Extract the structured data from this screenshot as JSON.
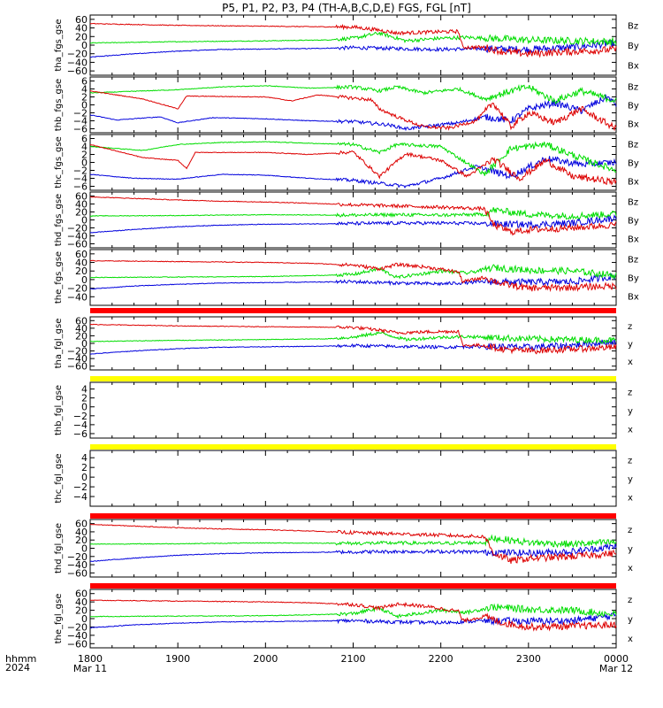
{
  "title": "P5, P1, P2, P3, P4 (TH-A,B,C,D,E) FGS, FGL [nT]",
  "bottom_labels": {
    "line1": "hhmm",
    "line2": "2024"
  },
  "colors": {
    "x": "#0000dd",
    "y": "#00dd00",
    "z": "#dd0000",
    "bar_red": "#ff0000",
    "bar_yellow": "#ffff00",
    "axis": "#000000"
  },
  "chart_data": {
    "type": "line",
    "x_axis": {
      "ticks": [
        "1800",
        "1900",
        "2000",
        "2100",
        "2200",
        "2300",
        "0000"
      ],
      "date_labels": [
        {
          "at": "1800",
          "text": "Mar 11"
        },
        {
          "at": "0000",
          "text": "Mar 12"
        }
      ],
      "range_hours": [
        18,
        24
      ]
    },
    "panels": [
      {
        "ylabel": "tha_fgs_gse",
        "ylim": [
          -70,
          70
        ],
        "yticks": [
          "60",
          "40",
          "20",
          "0",
          "−20",
          "−40",
          "−60"
        ],
        "legend": [
          "Bz",
          "By",
          "Bx"
        ],
        "profile": "a",
        "state_bar": null
      },
      {
        "ylabel": "thb_fgs_gse",
        "ylim": [
          -7,
          7
        ],
        "yticks": [
          "6",
          "4",
          "2",
          "0",
          "−2",
          "−4",
          "−6"
        ],
        "legend": [
          "Bz",
          "By",
          "Bx"
        ],
        "profile": "b",
        "state_bar": null
      },
      {
        "ylabel": "thc_fgs_gse",
        "ylim": [
          -7,
          7
        ],
        "yticks": [
          "6",
          "4",
          "2",
          "0",
          "−2",
          "−4",
          "−6"
        ],
        "legend": [
          "Bz",
          "By",
          "Bx"
        ],
        "profile": "c",
        "state_bar": null
      },
      {
        "ylabel": "thd_fgs_gse",
        "ylim": [
          -70,
          70
        ],
        "yticks": [
          "60",
          "40",
          "20",
          "0",
          "−20",
          "−40",
          "−60"
        ],
        "legend": [
          "Bz",
          "By",
          "Bx"
        ],
        "profile": "d",
        "state_bar": null
      },
      {
        "ylabel": "the_fgs_gse",
        "ylim": [
          -60,
          70
        ],
        "yticks": [
          "60",
          "40",
          "20",
          "0",
          "−20",
          "−40"
        ],
        "legend": [
          "Bz",
          "By",
          "Bx"
        ],
        "profile": "e",
        "state_bar": null
      },
      {
        "ylabel": "tha_fgl_gse",
        "ylim": [
          -70,
          70
        ],
        "yticks": [
          "60",
          "40",
          "20",
          "0",
          "−20",
          "−40",
          "−60"
        ],
        "legend": [
          "z",
          "y",
          "x"
        ],
        "profile": "a",
        "state_bar": "red"
      },
      {
        "ylabel": "thb_fgl_gse",
        "ylim": [
          -7,
          5.5
        ],
        "yticks": [
          "4",
          "2",
          "0",
          "−2",
          "−4",
          "−6"
        ],
        "legend": [
          "z",
          "y",
          "x"
        ],
        "profile": null,
        "state_bar": "yellow"
      },
      {
        "ylabel": "thc_fgl_gse",
        "ylim": [
          -6,
          5.5
        ],
        "yticks": [
          "4",
          "2",
          "0",
          "−2",
          "−4"
        ],
        "legend": [
          "z",
          "y",
          "x"
        ],
        "profile": null,
        "state_bar": "yellow"
      },
      {
        "ylabel": "thd_fgl_gse",
        "ylim": [
          -70,
          70
        ],
        "yticks": [
          "60",
          "40",
          "20",
          "0",
          "−20",
          "−40",
          "−60"
        ],
        "legend": [
          "z",
          "y",
          "x"
        ],
        "profile": "d",
        "state_bar": "red"
      },
      {
        "ylabel": "the_fgl_gse",
        "ylim": [
          -70,
          70
        ],
        "yticks": [
          "60",
          "40",
          "20",
          "0",
          "−20",
          "−40",
          "−60"
        ],
        "legend": [
          "z",
          "y",
          "x"
        ],
        "profile": "e",
        "state_bar": "red"
      }
    ],
    "series_profiles": {
      "a": {
        "z": [
          [
            18,
            50
          ],
          [
            19,
            46
          ],
          [
            20,
            44
          ],
          [
            21,
            42
          ],
          [
            21.3,
            35
          ],
          [
            21.5,
            28
          ],
          [
            21.8,
            30
          ],
          [
            22.2,
            32
          ],
          [
            22.25,
            -5
          ],
          [
            22.5,
            -5
          ],
          [
            22.7,
            -15
          ],
          [
            23,
            -20
          ],
          [
            23.5,
            -15
          ],
          [
            24,
            -10
          ]
        ],
        "y": [
          [
            18,
            5
          ],
          [
            19,
            8
          ],
          [
            20,
            10
          ],
          [
            20.7,
            12
          ],
          [
            21,
            16
          ],
          [
            21.3,
            28
          ],
          [
            21.6,
            10
          ],
          [
            22,
            16
          ],
          [
            22.3,
            18
          ],
          [
            23,
            12
          ],
          [
            23.5,
            10
          ],
          [
            24,
            8
          ]
        ],
        "x": [
          [
            18,
            -28
          ],
          [
            18.5,
            -20
          ],
          [
            19,
            -14
          ],
          [
            19.5,
            -10
          ],
          [
            20,
            -9
          ],
          [
            20.5,
            -8
          ],
          [
            21,
            -6
          ],
          [
            21.5,
            -8
          ],
          [
            22,
            -10
          ],
          [
            22.5,
            -8
          ],
          [
            23,
            -10
          ],
          [
            23.5,
            -5
          ],
          [
            24,
            5
          ]
        ]
      },
      "b": {
        "z": [
          [
            18,
            3.5
          ],
          [
            18.6,
            1.5
          ],
          [
            19,
            -1.0
          ],
          [
            19.1,
            2.2
          ],
          [
            20,
            2.0
          ],
          [
            20.3,
            1.0
          ],
          [
            20.6,
            2.5
          ],
          [
            21.2,
            1.3
          ],
          [
            21.3,
            -1.0
          ],
          [
            21.5,
            -3.0
          ],
          [
            21.8,
            -5.5
          ],
          [
            22.1,
            -5.8
          ],
          [
            22.4,
            -4.0
          ],
          [
            22.6,
            0.5
          ],
          [
            22.8,
            -5.5
          ],
          [
            23,
            -2.0
          ],
          [
            23.3,
            -4.5
          ],
          [
            23.6,
            -1.0
          ],
          [
            24,
            -6.0
          ]
        ],
        "y": [
          [
            18,
            3.0
          ],
          [
            18.6,
            3.5
          ],
          [
            19,
            3.8
          ],
          [
            19.5,
            4.5
          ],
          [
            20,
            4.8
          ],
          [
            20.5,
            4.2
          ],
          [
            21,
            4.5
          ],
          [
            21.3,
            3.5
          ],
          [
            21.5,
            4.5
          ],
          [
            21.8,
            3.0
          ],
          [
            22.2,
            4.0
          ],
          [
            22.5,
            1.5
          ],
          [
            22.8,
            3.5
          ],
          [
            23,
            4.5
          ],
          [
            23.3,
            1.0
          ],
          [
            23.6,
            3.5
          ],
          [
            24,
            1.0
          ]
        ],
        "x": [
          [
            18,
            -2.5
          ],
          [
            18.3,
            -3.8
          ],
          [
            18.8,
            -3.0
          ],
          [
            19,
            -4.5
          ],
          [
            19.4,
            -3.2
          ],
          [
            20,
            -3.5
          ],
          [
            20.5,
            -4.0
          ],
          [
            21,
            -4.2
          ],
          [
            21.4,
            -5.0
          ],
          [
            21.6,
            -6.0
          ],
          [
            21.8,
            -5.5
          ],
          [
            22.2,
            -4.5
          ],
          [
            22.5,
            -3.0
          ],
          [
            22.8,
            -4.0
          ],
          [
            23,
            -1.0
          ],
          [
            23.3,
            0.5
          ],
          [
            23.6,
            -1.5
          ],
          [
            23.9,
            2.0
          ],
          [
            24,
            0.0
          ]
        ]
      },
      "c": {
        "z": [
          [
            18,
            4.5
          ],
          [
            18.6,
            1.2
          ],
          [
            19,
            0.5
          ],
          [
            19.1,
            -1.5
          ],
          [
            19.2,
            2.5
          ],
          [
            20,
            2.5
          ],
          [
            20.5,
            2.0
          ],
          [
            21,
            2.6
          ],
          [
            21.3,
            -3.5
          ],
          [
            21.6,
            2.2
          ],
          [
            22,
            0.5
          ],
          [
            22.3,
            -3.5
          ],
          [
            22.6,
            0.8
          ],
          [
            22.9,
            -4.0
          ],
          [
            23.2,
            0.5
          ],
          [
            23.5,
            -3.5
          ],
          [
            24,
            -5.0
          ]
        ],
        "y": [
          [
            18,
            4.0
          ],
          [
            18.6,
            3.0
          ],
          [
            19,
            4.5
          ],
          [
            19.5,
            5.0
          ],
          [
            20,
            5.2
          ],
          [
            20.5,
            4.8
          ],
          [
            21,
            4.5
          ],
          [
            21.3,
            2.5
          ],
          [
            21.5,
            4.5
          ],
          [
            22,
            4.0
          ],
          [
            22.5,
            -3.0
          ],
          [
            22.8,
            3.5
          ],
          [
            23.2,
            4.5
          ],
          [
            23.6,
            1.0
          ],
          [
            24,
            -2.0
          ]
        ],
        "x": [
          [
            18,
            -3.0
          ],
          [
            18.5,
            -4.0
          ],
          [
            19,
            -4.2
          ],
          [
            19.5,
            -3.0
          ],
          [
            20,
            -3.2
          ],
          [
            20.5,
            -4.0
          ],
          [
            21,
            -4.5
          ],
          [
            21.4,
            -5.5
          ],
          [
            21.6,
            -6.0
          ],
          [
            22,
            -4.0
          ],
          [
            22.4,
            -1.0
          ],
          [
            22.8,
            -3.5
          ],
          [
            23.2,
            1.0
          ],
          [
            23.6,
            -0.5
          ],
          [
            24,
            0.0
          ]
        ]
      },
      "d": {
        "z": [
          [
            18,
            58
          ],
          [
            18.5,
            54
          ],
          [
            19,
            50
          ],
          [
            19.5,
            47
          ],
          [
            20,
            45
          ],
          [
            20.5,
            42
          ],
          [
            21,
            38
          ],
          [
            21.5,
            35
          ],
          [
            22,
            32
          ],
          [
            22.5,
            28
          ],
          [
            22.6,
            -12
          ],
          [
            22.8,
            -30
          ],
          [
            23,
            -25
          ],
          [
            23.5,
            -20
          ],
          [
            24,
            -12
          ]
        ],
        "y": [
          [
            18,
            10
          ],
          [
            19,
            11
          ],
          [
            19.5,
            12
          ],
          [
            20,
            13
          ],
          [
            21,
            12
          ],
          [
            21.5,
            13
          ],
          [
            22,
            12
          ],
          [
            22.5,
            14
          ],
          [
            22.6,
            25
          ],
          [
            23,
            14
          ],
          [
            23.5,
            10
          ],
          [
            24,
            15
          ]
        ],
        "x": [
          [
            18,
            -32
          ],
          [
            18.5,
            -24
          ],
          [
            19,
            -17
          ],
          [
            19.5,
            -13
          ],
          [
            20,
            -11
          ],
          [
            20.5,
            -10
          ],
          [
            21,
            -9
          ],
          [
            21.5,
            -8
          ],
          [
            22,
            -8
          ],
          [
            22.5,
            -9
          ],
          [
            23,
            -12
          ],
          [
            23.5,
            -8
          ],
          [
            24,
            5
          ]
        ]
      },
      "e": {
        "z": [
          [
            18,
            44
          ],
          [
            19,
            42
          ],
          [
            20,
            40
          ],
          [
            20.5,
            38
          ],
          [
            21,
            34
          ],
          [
            21.3,
            25
          ],
          [
            21.5,
            35
          ],
          [
            21.8,
            30
          ],
          [
            22.2,
            18
          ],
          [
            22.25,
            -5
          ],
          [
            22.5,
            5
          ],
          [
            22.7,
            -10
          ],
          [
            23,
            -20
          ],
          [
            23.5,
            -18
          ],
          [
            24,
            -15
          ]
        ],
        "y": [
          [
            18,
            5
          ],
          [
            19,
            6
          ],
          [
            20,
            7
          ],
          [
            20.7,
            10
          ],
          [
            21,
            12
          ],
          [
            21.3,
            25
          ],
          [
            21.5,
            5
          ],
          [
            22,
            20
          ],
          [
            22.3,
            15
          ],
          [
            22.6,
            28
          ],
          [
            23,
            22
          ],
          [
            23.5,
            20
          ],
          [
            24,
            10
          ]
        ],
        "x": [
          [
            18,
            -22
          ],
          [
            18.5,
            -15
          ],
          [
            19,
            -11
          ],
          [
            19.5,
            -8
          ],
          [
            20,
            -7
          ],
          [
            20.5,
            -6
          ],
          [
            21,
            -5
          ],
          [
            21.5,
            -8
          ],
          [
            22,
            -10
          ],
          [
            22.5,
            -5
          ],
          [
            23,
            -6
          ],
          [
            23.5,
            -5
          ],
          [
            24,
            8
          ]
        ]
      }
    }
  }
}
